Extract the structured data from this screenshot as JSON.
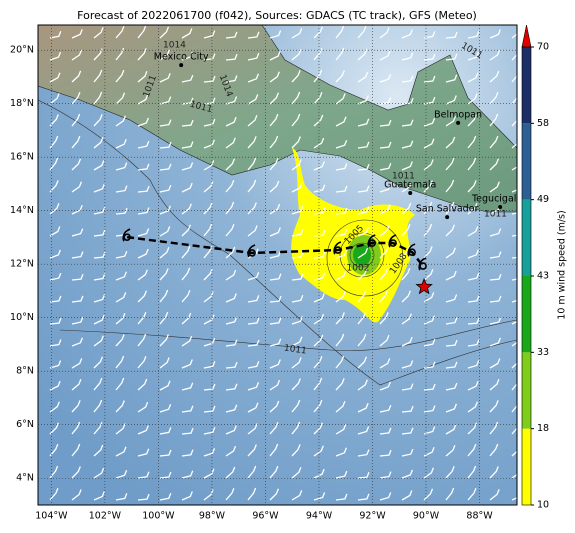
{
  "map": {
    "title": "Forecast of 2022061700 (f042), Sources: GDACS (TC track), GFS (Meteo)",
    "lon_range": [
      -104.5,
      -86.6
    ],
    "lat_range": [
      3.0,
      20.94
    ],
    "lon_ticks": [
      {
        "value": -104,
        "label": "104°W"
      },
      {
        "value": -102,
        "label": "102°W"
      },
      {
        "value": -100,
        "label": "100°W"
      },
      {
        "value": -98,
        "label": "98°W"
      },
      {
        "value": -96,
        "label": "96°W"
      },
      {
        "value": -94,
        "label": "94°W"
      },
      {
        "value": -92,
        "label": "92°W"
      },
      {
        "value": -90,
        "label": "90°W"
      },
      {
        "value": -88,
        "label": "88°W"
      }
    ],
    "lat_ticks": [
      {
        "value": 20,
        "label": "20°N"
      },
      {
        "value": 18,
        "label": "18°N"
      },
      {
        "value": 16,
        "label": "16°N"
      },
      {
        "value": 14,
        "label": "14°N"
      },
      {
        "value": 12,
        "label": "12°N"
      },
      {
        "value": 10,
        "label": "10°N"
      },
      {
        "value": 8,
        "label": "8°N"
      },
      {
        "value": 6,
        "label": "6°N"
      },
      {
        "value": 4,
        "label": "4°N"
      }
    ],
    "cities": [
      {
        "name": "Mexico City",
        "lon": -99.15,
        "lat": 19.44
      },
      {
        "name": "Belmopan",
        "lon": -88.8,
        "lat": 17.28
      },
      {
        "name": "Guatemala",
        "lon": -90.59,
        "lat": 14.66
      },
      {
        "name": "San Salvador",
        "lon": -89.21,
        "lat": 13.76
      },
      {
        "name": "Tegucigalpa",
        "lon": -87.23,
        "lat": 14.14
      }
    ],
    "track": {
      "lon": [
        -101.17,
        -96.5,
        -93.29,
        -92.01,
        -91.23,
        -90.52,
        -90.11
      ],
      "lat": [
        13.01,
        12.42,
        12.53,
        12.79,
        12.79,
        12.45,
        11.93
      ]
    },
    "current_position": {
      "lon": -90.07,
      "lat": 11.15
    },
    "isobar_labels": [
      "1014",
      "1011",
      "1014",
      "1011",
      "1011",
      "1011",
      "1011",
      "1005",
      "1002",
      "1008",
      "1011"
    ],
    "colorbar": {
      "label": "10 m wind speed (m/s)",
      "ticks": [
        10,
        18,
        33,
        43,
        49,
        58,
        70
      ],
      "colors": [
        "#ffff00",
        "#7fcc1a",
        "#19a819",
        "#179f9a",
        "#2c5f94",
        "#1b2f66"
      ],
      "extend_color": "#e00000"
    }
  }
}
